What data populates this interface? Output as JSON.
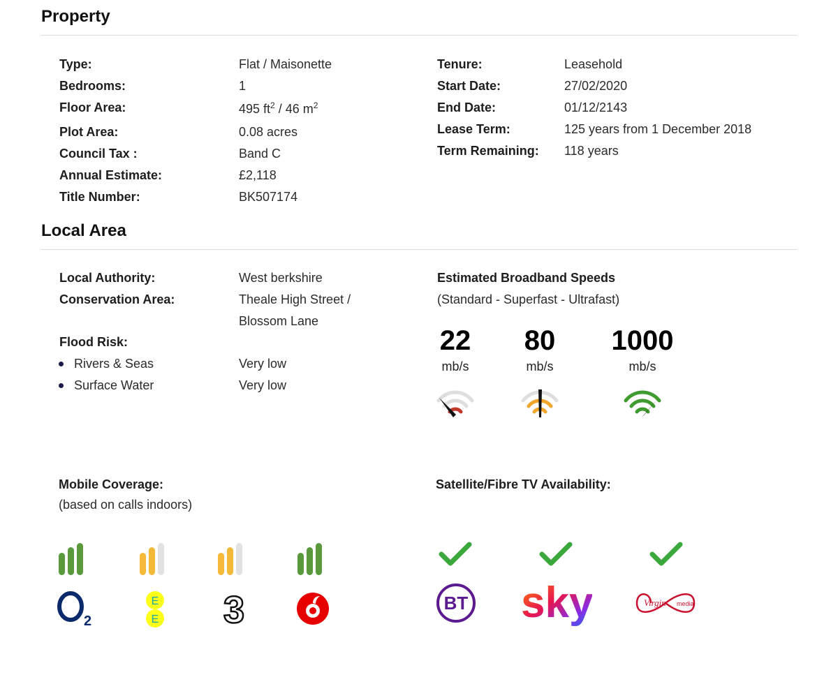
{
  "property": {
    "title": "Property",
    "left": [
      {
        "label": "Type:",
        "value": "Flat / Maisonette"
      },
      {
        "label": "Bedrooms:",
        "value": "1"
      },
      {
        "label": "Floor Area:",
        "value_a": "495 ft",
        "sup_a": "2",
        "value_sep": " / 46 m",
        "sup_b": "2"
      },
      {
        "label": "Plot Area:",
        "value": "0.08 acres"
      },
      {
        "label": "Council Tax :",
        "value": "Band C"
      },
      {
        "label": "Annual Estimate:",
        "value": "£2,118"
      },
      {
        "label": "Title Number:",
        "value": "BK507174"
      }
    ],
    "right": [
      {
        "label": "Tenure:",
        "value": "Leasehold"
      },
      {
        "label": "Start Date:",
        "value": "27/02/2020"
      },
      {
        "label": "End Date:",
        "value": "01/12/2143"
      },
      {
        "label": "Lease Term:",
        "value": "125 years from 1 December 2018"
      },
      {
        "label": "Term Remaining:",
        "value": "118 years"
      }
    ]
  },
  "local_area": {
    "title": "Local Area",
    "local_authority": {
      "label": "Local Authority:",
      "value": "West berkshire"
    },
    "conservation_area": {
      "label": "Conservation Area:",
      "value_line1": "Theale High Street /",
      "value_line2": "Blossom Lane"
    },
    "flood_risk": {
      "label": "Flood Risk:",
      "items": [
        {
          "label": "Rivers & Seas",
          "value": "Very low"
        },
        {
          "label": "Surface Water",
          "value": "Very low"
        }
      ]
    },
    "broadband": {
      "title": "Estimated Broadband Speeds",
      "subtitle": "(Standard - Superfast - Ultrafast)",
      "speeds": [
        {
          "value": "22",
          "unit": "mb/s",
          "gauge_icon": "speed-gauge-low-icon",
          "color": "#c0392b",
          "level": 1
        },
        {
          "value": "80",
          "unit": "mb/s",
          "gauge_icon": "speed-gauge-medium-icon",
          "color": "#f0a62b",
          "level": 2
        },
        {
          "value": "1000",
          "unit": "mb/s",
          "gauge_icon": "speed-gauge-high-icon",
          "color": "#3f9b2f",
          "level": 3
        }
      ]
    },
    "mobile": {
      "title": "Mobile Coverage:",
      "subtitle": "(based on calls indoors)",
      "providers": [
        {
          "name": "O2",
          "signal": 3,
          "bar_color": "#5a9a3c",
          "logo_icon": "o2-logo-icon"
        },
        {
          "name": "EE",
          "signal": 2,
          "bar_color": "#f5b93a",
          "logo_icon": "ee-logo-icon"
        },
        {
          "name": "3",
          "signal": 2,
          "bar_color": "#f5b93a",
          "logo_icon": "three-logo-icon"
        },
        {
          "name": "Vodafone",
          "signal": 3,
          "bar_color": "#5a9a3c",
          "logo_icon": "vodafone-logo-icon"
        }
      ]
    },
    "tv": {
      "title": "Satellite/Fibre TV Availability:",
      "providers": [
        {
          "name": "BT",
          "available": true,
          "logo_icon": "bt-logo-icon"
        },
        {
          "name": "sky",
          "available": true,
          "logo_icon": "sky-logo-icon"
        },
        {
          "name": "Virgin media",
          "available": true,
          "logo_icon": "virgin-media-logo-icon"
        }
      ]
    }
  }
}
